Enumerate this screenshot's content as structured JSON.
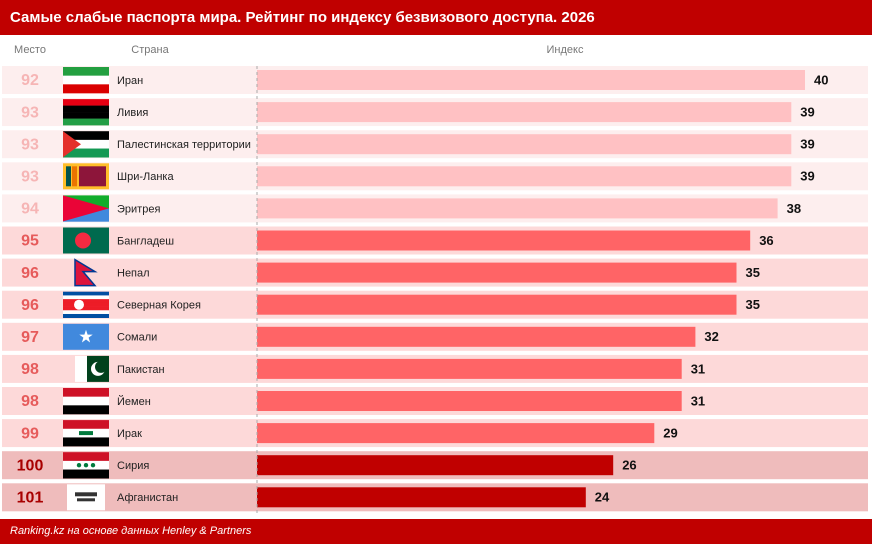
{
  "chart_data": {
    "type": "bar",
    "title": "Самые слабые паспорта мира. Рейтинг по индексу безвизового доступа. 2026",
    "column_headers": [
      "Место",
      "Страна",
      "Индекс"
    ],
    "ranks": [
      92,
      93,
      93,
      93,
      94,
      95,
      96,
      96,
      97,
      98,
      98,
      99,
      100,
      101
    ],
    "categories": [
      "Иран",
      "Ливия",
      "Палестинская территории",
      "Шри-Ланка",
      "Эритрея",
      "Бангладеш",
      "Непал",
      "Северная Корея",
      "Сомали",
      "Пакистан",
      "Йемен",
      "Ирак",
      "Сирия",
      "Афганистан"
    ],
    "values": [
      40,
      39,
      39,
      39,
      38,
      36,
      35,
      35,
      32,
      31,
      31,
      29,
      26,
      24
    ],
    "colors": [
      "#ffc1c3",
      "#ffc1c3",
      "#ffc1c3",
      "#ffc1c3",
      "#ffc1c3",
      "#ff6466",
      "#ff6466",
      "#ff6466",
      "#ff6466",
      "#ff6466",
      "#ff6466",
      "#ff6466",
      "#c00000",
      "#c00000"
    ],
    "source": "Ranking.kz на основе данных Henley & Partners"
  }
}
